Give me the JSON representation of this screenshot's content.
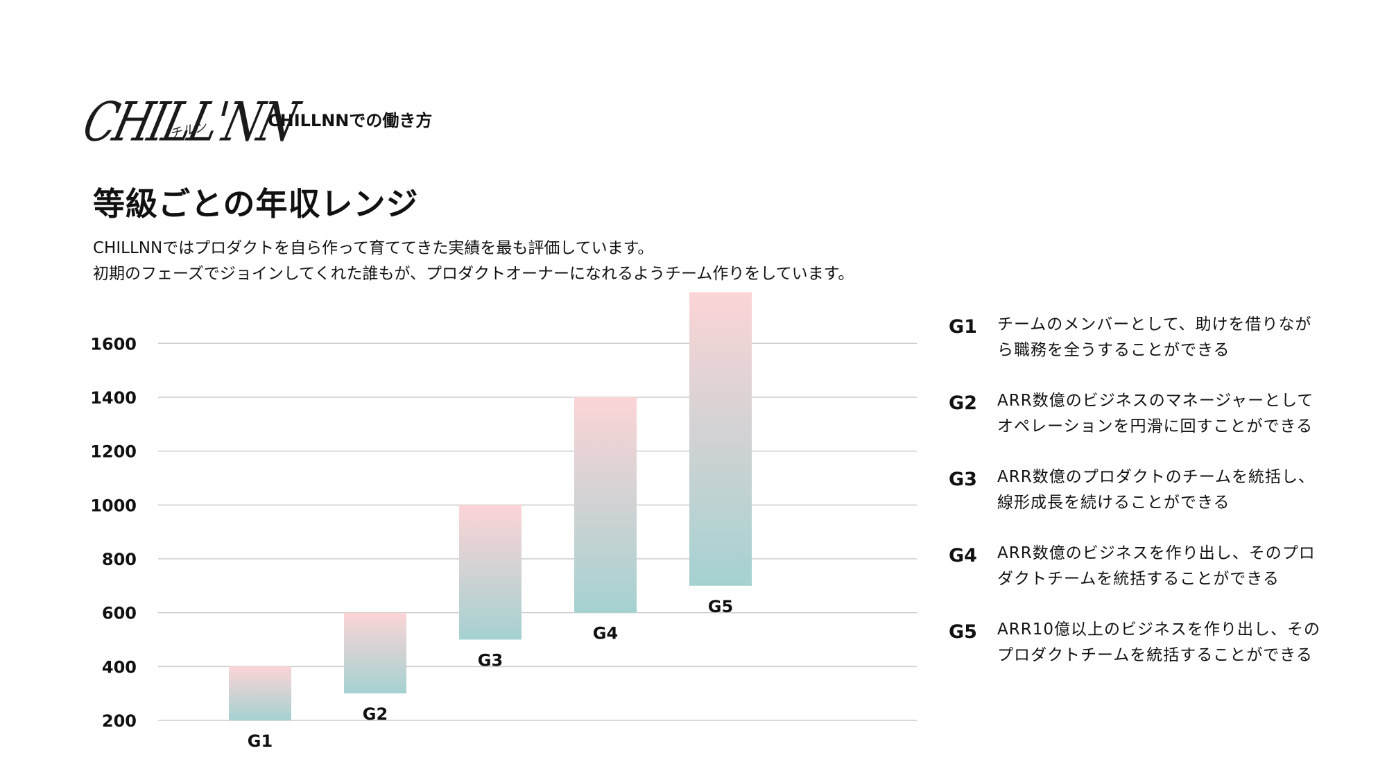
{
  "brand": {
    "logo_text": "CHILL'NN",
    "logo_sub": "チルン"
  },
  "header": {
    "section_label": "CHILLNNでの働き方"
  },
  "title": "等級ごとの年収レンジ",
  "intro": {
    "line1": "CHILLNNではプロダクトを自ら作って育ててきた実績を最も評価しています。",
    "line2": "初期のフェーズでジョインしてくれた誰もが、プロダクトオーナーになれるようチーム作りをしています。"
  },
  "colors": {
    "bar_top": "#fcd4d6",
    "bar_bottom": "#a5d1d1",
    "grid": "#cccccc"
  },
  "chart_data": {
    "type": "bar",
    "categories": [
      "G1",
      "G2",
      "G3",
      "G4",
      "G5"
    ],
    "ranges": [
      [
        200,
        400
      ],
      [
        300,
        600
      ],
      [
        500,
        1000
      ],
      [
        600,
        1400
      ],
      [
        700,
        1790
      ]
    ],
    "yticks": [
      200,
      400,
      600,
      800,
      1000,
      1200,
      1400,
      1600
    ],
    "ylim": [
      200,
      1800
    ],
    "grid": true
  },
  "grades": [
    {
      "code": "G1",
      "line1": "チームのメンバーとして、助けを借りなが",
      "line2": "ら職務を全うすることができる"
    },
    {
      "code": "G2",
      "line1": "ARR数億のビジネスのマネージャーとして",
      "line2": "オペレーションを円滑に回すことができる"
    },
    {
      "code": "G3",
      "line1": "ARR数億のプロダクトのチームを統括し、",
      "line2": "線形成長を続けることができる"
    },
    {
      "code": "G4",
      "line1": "ARR数億のビジネスを作り出し、そのプロ",
      "line2": "ダクトチームを統括することができる"
    },
    {
      "code": "G5",
      "line1": "ARR10億以上のビジネスを作り出し、その",
      "line2": "プロダクトチームを統括することができる"
    }
  ]
}
